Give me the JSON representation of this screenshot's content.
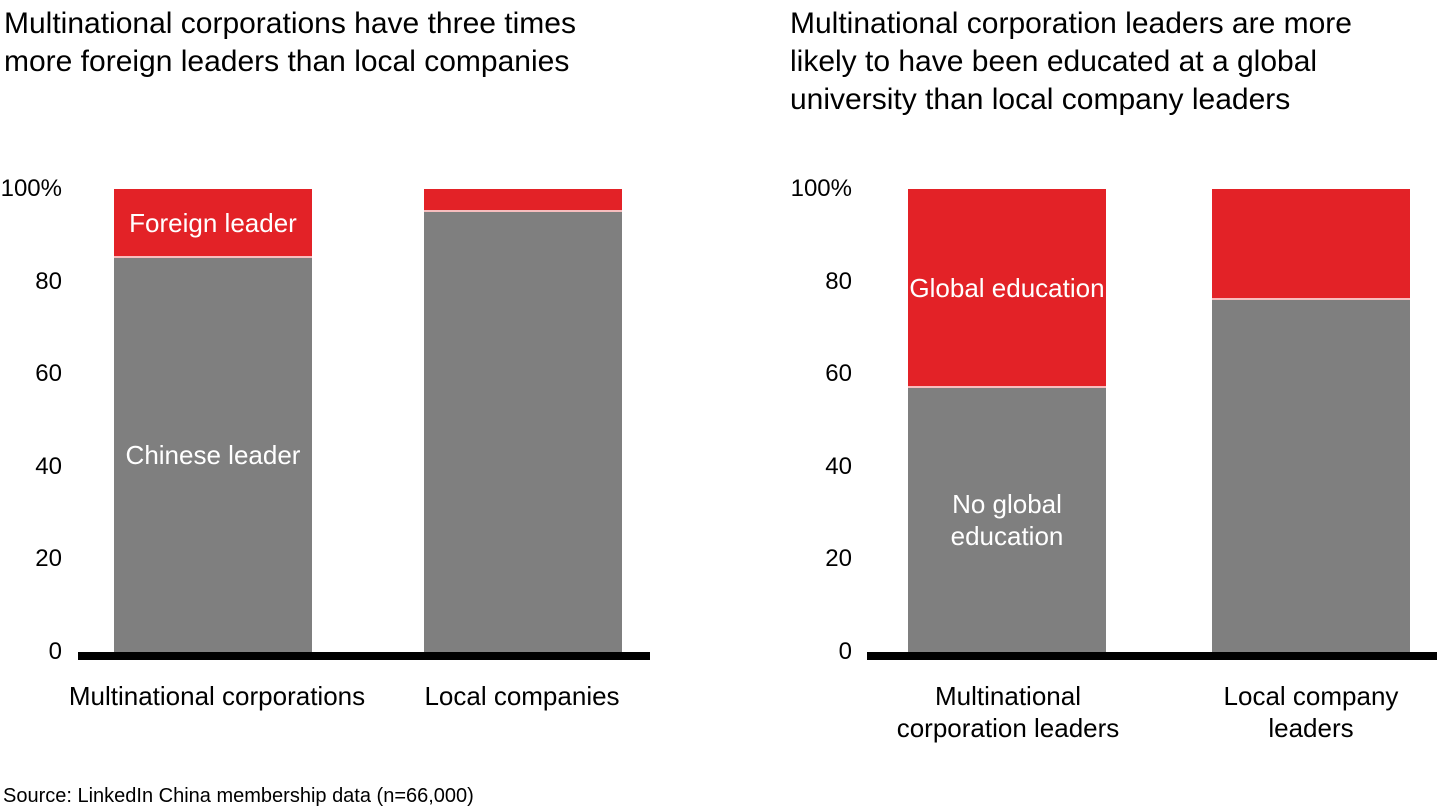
{
  "page": {
    "background": "#ffffff",
    "source_note": "Source: LinkedIn China membership data (n=66,000)"
  },
  "colors": {
    "red": "#e32227",
    "gray": "#7f7f7f",
    "axis": "#000000",
    "in_bar_text": "#ffffff",
    "text": "#000000"
  },
  "chart_data": [
    {
      "type": "bar",
      "stacking": "percent",
      "title": "Multinational corporations have three times more foreign leaders than local companies",
      "title_lines": [
        "Multinational corporations have three times",
        "more foreign leaders than local companies"
      ],
      "categories": [
        "Multinational corporations",
        "Local companies"
      ],
      "series": [
        {
          "name": "Chinese leader",
          "color": "#7f7f7f",
          "values": [
            85,
            95
          ]
        },
        {
          "name": "Foreign leader",
          "color": "#e32227",
          "values": [
            15,
            5
          ]
        }
      ],
      "y_ticks": [
        "100%",
        "80",
        "60",
        "40",
        "20",
        "0"
      ],
      "ylim": [
        0,
        100
      ],
      "y_unit": "%",
      "grid": false,
      "legend": "labels drawn inside first bar segments"
    },
    {
      "type": "bar",
      "stacking": "percent",
      "title": "Multinational corporation leaders are more likely to have been educated at a global university than local company leaders",
      "title_lines": [
        "Multinational corporation leaders are more",
        "likely to have been educated at a global",
        "university than local company leaders"
      ],
      "categories": [
        "Multinational corporation leaders",
        "Local company leaders"
      ],
      "series": [
        {
          "name": "No global education",
          "color": "#7f7f7f",
          "values": [
            57,
            76
          ]
        },
        {
          "name": "Global education",
          "color": "#e32227",
          "values": [
            43,
            24
          ]
        }
      ],
      "y_ticks": [
        "100%",
        "80",
        "60",
        "40",
        "20",
        "0"
      ],
      "ylim": [
        0,
        100
      ],
      "y_unit": "%",
      "grid": false,
      "legend": "labels drawn inside first bar segments"
    }
  ]
}
